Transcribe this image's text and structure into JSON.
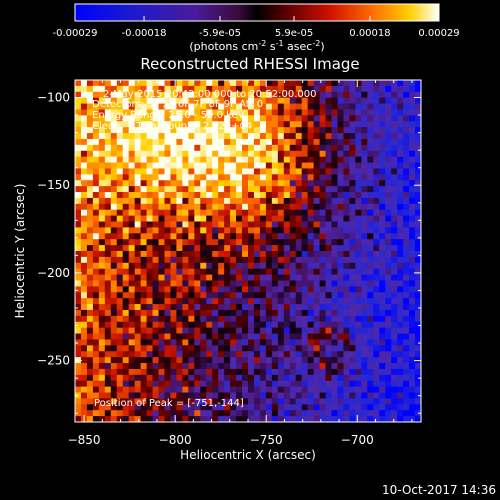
{
  "chart_data": {
    "type": "heatmap",
    "title": "Reconstructed RHESSI Image",
    "xlabel": "Heliocentric X (arcsec)",
    "ylabel": "Heliocentric Y (arcsec)",
    "xlim": [
      -855,
      -665
    ],
    "ylim": [
      -285,
      -90
    ],
    "x_ticks": [
      -850,
      -800,
      -750,
      -700
    ],
    "x_tick_labels": [
      "−850",
      "−800",
      "−750",
      "−700"
    ],
    "y_ticks": [
      -100,
      -150,
      -200,
      -250
    ],
    "y_tick_labels": [
      "−100",
      "−150",
      "−200",
      "−250"
    ],
    "colorbar": {
      "min": -0.00029,
      "max": 0.00029,
      "tick_values": [
        -0.00029,
        -0.00018,
        -5.9e-05,
        5.9e-05,
        0.00018,
        0.00029
      ],
      "tick_labels": [
        "-0.00029",
        "-0.00018",
        "-5.9e-05",
        "5.9e-05",
        "0.00018",
        "0.00029"
      ],
      "unit_base": "(photons cm",
      "unit_sup1": "-2",
      "unit_mid": " s",
      "unit_sup2": "-1",
      "unit_mid2": " asec",
      "unit_sup3": "-2",
      "unit_end": ")"
    },
    "peak_position": [
      -751,
      -144
    ],
    "annotations": {
      "line1": "2-May-2015 20:42:00.000 to 20:52:00.000",
      "line2": "Detectors: 3F 5F 6F 7F 8F 9F  Att 0",
      "line3": "Energy Range: 25.0 - 50.0 keV",
      "line4": "Clean     Total counts: 2.42e+04",
      "peak": "Position of Peak = [-751,-144]"
    }
  },
  "footer": {
    "timestamp": "10-Oct-2017 14:36"
  }
}
